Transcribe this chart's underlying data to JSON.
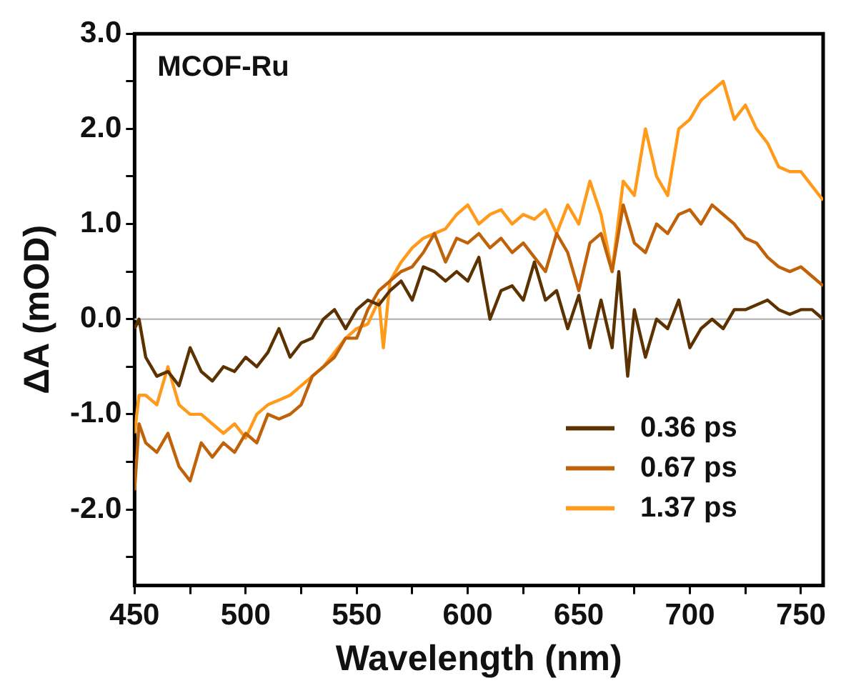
{
  "chart_data": {
    "type": "line",
    "xlabel": "Wavelength (nm)",
    "ylabel": "ΔA (mOD)",
    "annotations": [
      "MCOF-Ru"
    ],
    "legend": "bottom right",
    "marker": "none",
    "line_style": "solid",
    "xlim": [
      450,
      760
    ],
    "xticks": [
      450,
      {
        "value": 475,
        "label": null
      },
      500,
      {
        "value": 525,
        "label": null
      },
      550,
      {
        "value": 575,
        "label": null
      },
      600,
      {
        "value": 625,
        "label": null
      },
      650,
      {
        "value": 675,
        "label": null
      },
      700,
      {
        "value": 725,
        "label": null
      },
      750
    ],
    "ylim": [
      -2.8,
      3.0
    ],
    "yticks": [
      {
        "value": -2.5,
        "label": null
      },
      {
        "value": -2,
        "label": "-2.0"
      },
      {
        "value": -1.5,
        "label": null
      },
      {
        "value": -1,
        "label": "-1.0"
      },
      {
        "value": -0.5,
        "label": null
      },
      {
        "value": 0,
        "label": "0.0"
      },
      {
        "value": 0.5,
        "label": null
      },
      {
        "value": 1,
        "label": "1.0"
      },
      {
        "value": 1.5,
        "label": null
      },
      {
        "value": 2,
        "label": "2.0"
      },
      {
        "value": 2.5,
        "label": null
      },
      {
        "value": 3,
        "label": "3.0"
      }
    ],
    "ref_lines": [
      {
        "axis": "y",
        "value": 0,
        "color": "#bbbbbb"
      }
    ],
    "series": [
      {
        "name": "0.36 ps",
        "color": "#5c3300",
        "x": [
          450,
          452,
          455,
          460,
          465,
          470,
          475,
          480,
          485,
          490,
          495,
          500,
          505,
          510,
          515,
          520,
          525,
          530,
          535,
          540,
          545,
          550,
          555,
          560,
          565,
          570,
          575,
          580,
          585,
          590,
          595,
          600,
          605,
          610,
          615,
          620,
          625,
          630,
          635,
          640,
          645,
          650,
          655,
          660,
          665,
          668,
          672,
          675,
          680,
          685,
          690,
          695,
          700,
          705,
          710,
          715,
          720,
          725,
          730,
          735,
          740,
          745,
          750,
          755,
          760
        ],
        "values": [
          -0.1,
          0.0,
          -0.4,
          -0.6,
          -0.55,
          -0.7,
          -0.3,
          -0.55,
          -0.65,
          -0.5,
          -0.55,
          -0.4,
          -0.5,
          -0.35,
          -0.1,
          -0.4,
          -0.25,
          -0.2,
          0.0,
          0.1,
          -0.1,
          0.1,
          0.2,
          0.15,
          0.3,
          0.4,
          0.2,
          0.55,
          0.5,
          0.4,
          0.5,
          0.4,
          0.65,
          0.0,
          0.3,
          0.35,
          0.2,
          0.6,
          0.2,
          0.3,
          -0.1,
          0.25,
          -0.3,
          0.2,
          -0.3,
          0.5,
          -0.6,
          0.1,
          -0.4,
          0.0,
          -0.1,
          0.2,
          -0.3,
          -0.1,
          0.0,
          -0.1,
          0.1,
          0.1,
          0.15,
          0.2,
          0.1,
          0.05,
          0.1,
          0.1,
          0.0
        ]
      },
      {
        "name": "0.67 ps",
        "color": "#c0620a",
        "x": [
          450,
          452,
          455,
          460,
          465,
          470,
          475,
          480,
          485,
          490,
          495,
          500,
          505,
          510,
          515,
          520,
          525,
          530,
          535,
          540,
          545,
          550,
          555,
          560,
          565,
          570,
          575,
          580,
          585,
          590,
          595,
          600,
          605,
          610,
          615,
          620,
          625,
          630,
          635,
          640,
          645,
          650,
          655,
          660,
          665,
          670,
          675,
          680,
          685,
          690,
          695,
          700,
          705,
          710,
          715,
          720,
          725,
          730,
          735,
          740,
          745,
          750,
          755,
          760
        ],
        "values": [
          -1.8,
          -1.1,
          -1.3,
          -1.4,
          -1.2,
          -1.55,
          -1.7,
          -1.3,
          -1.45,
          -1.3,
          -1.4,
          -1.2,
          -1.3,
          -1.0,
          -1.05,
          -1.0,
          -0.9,
          -0.6,
          -0.5,
          -0.4,
          -0.2,
          -0.2,
          0.1,
          0.3,
          0.4,
          0.5,
          0.55,
          0.7,
          0.9,
          0.6,
          0.85,
          0.8,
          0.9,
          0.75,
          0.85,
          0.7,
          0.8,
          0.65,
          0.5,
          0.9,
          0.7,
          0.3,
          0.8,
          0.9,
          0.5,
          1.2,
          0.8,
          0.7,
          1.0,
          0.9,
          1.1,
          1.15,
          1.0,
          1.2,
          1.1,
          1.0,
          0.85,
          0.8,
          0.65,
          0.55,
          0.5,
          0.55,
          0.45,
          0.35
        ]
      },
      {
        "name": "1.37 ps",
        "color": "#ff9a1a",
        "x": [
          450,
          452,
          455,
          460,
          465,
          470,
          475,
          480,
          485,
          490,
          495,
          500,
          505,
          510,
          515,
          520,
          525,
          530,
          535,
          540,
          545,
          550,
          555,
          560,
          562,
          565,
          570,
          575,
          580,
          585,
          590,
          595,
          600,
          605,
          610,
          615,
          620,
          625,
          630,
          635,
          640,
          645,
          650,
          655,
          660,
          665,
          670,
          675,
          680,
          685,
          690,
          695,
          700,
          705,
          710,
          715,
          720,
          725,
          730,
          735,
          740,
          745,
          750,
          755,
          760
        ],
        "values": [
          -1.2,
          -0.8,
          -0.8,
          -0.9,
          -0.5,
          -0.9,
          -1.0,
          -1.0,
          -1.1,
          -1.2,
          -1.1,
          -1.25,
          -1.0,
          -0.9,
          -0.85,
          -0.8,
          -0.7,
          -0.6,
          -0.5,
          -0.35,
          -0.2,
          -0.1,
          -0.05,
          0.2,
          -0.3,
          0.4,
          0.6,
          0.75,
          0.85,
          0.9,
          0.95,
          1.1,
          1.2,
          1.0,
          1.1,
          1.15,
          1.0,
          1.1,
          1.05,
          1.15,
          0.9,
          1.2,
          1.0,
          1.45,
          1.1,
          0.5,
          1.45,
          1.3,
          2.0,
          1.5,
          1.3,
          2.0,
          2.1,
          2.3,
          2.4,
          2.5,
          2.1,
          2.25,
          2.0,
          1.85,
          1.6,
          1.55,
          1.55,
          1.4,
          1.25
        ]
      }
    ]
  }
}
